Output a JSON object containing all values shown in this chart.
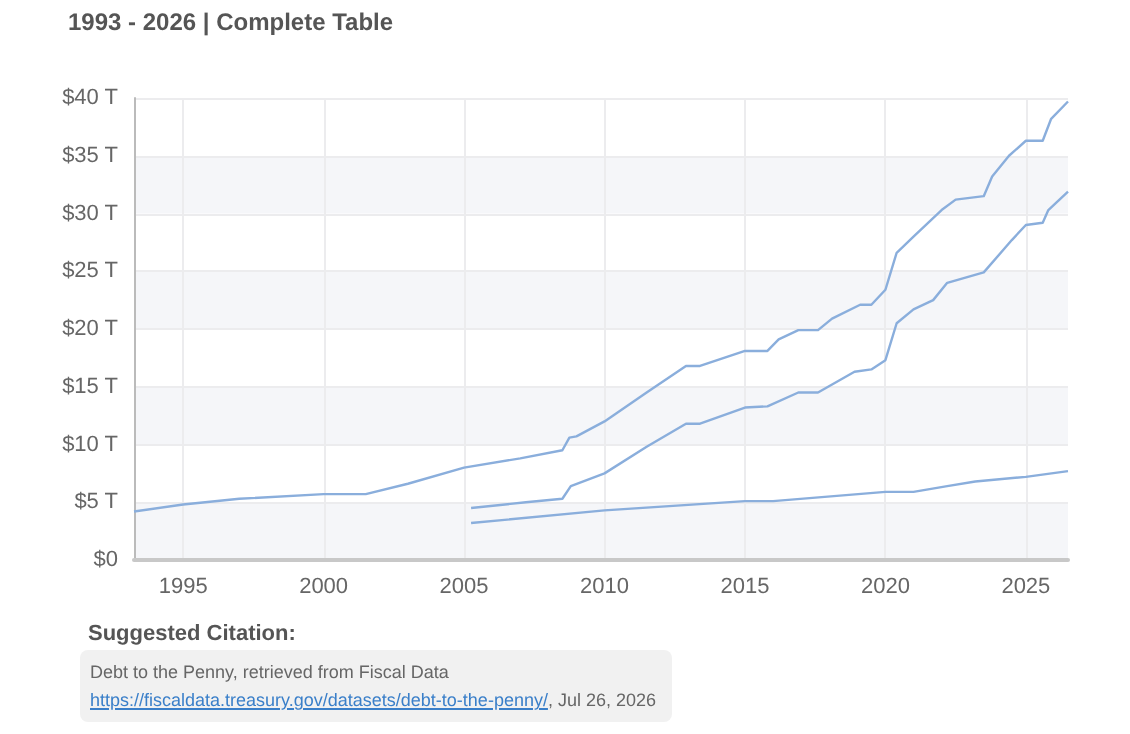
{
  "chart_data": {
    "type": "line",
    "title": "1993 - 2026 | Complete Table",
    "annotations": [
      "Suggested Citation:",
      "Debt to the Penny, retrieved from Fiscal Data",
      "https://fiscaldata.treasury.gov/datasets/debt-to-the-penny/",
      ", Jul 26, 2026"
    ],
    "xlim": [
      1993.25,
      2026.5
    ],
    "xticks": [
      1995,
      2000,
      2005,
      2010,
      2015,
      2020,
      2025
    ],
    "ylim": [
      0,
      40
    ],
    "yticks": [
      {
        "value": 0,
        "label": "$0"
      },
      {
        "value": 5,
        "label": "$5 T"
      },
      {
        "value": 10,
        "label": "$10 T"
      },
      {
        "value": 15,
        "label": "$15 T"
      },
      {
        "value": 20,
        "label": "$20 T"
      },
      {
        "value": 25,
        "label": "$25 T"
      },
      {
        "value": 30,
        "label": "$30 T"
      },
      {
        "value": 35,
        "label": "$35 T"
      },
      {
        "value": 40,
        "label": "$40 T"
      }
    ],
    "grid": true,
    "marker": "none",
    "line_style": "solid",
    "series": [
      {
        "color": "#8aaedc",
        "x": [
          1993.25,
          1995,
          1997,
          2000,
          2001.5,
          2003,
          2005,
          2007,
          2008.5,
          2008.75,
          2009,
          2010,
          2011.5,
          2012.9,
          2013.4,
          2015,
          2015.8,
          2016.2,
          2016.9,
          2017.6,
          2018.1,
          2019.1,
          2019.5,
          2020,
          2020.4,
          2021,
          2022,
          2022.5,
          2023.5,
          2023.8,
          2024.4,
          2025,
          2025.6,
          2025.9,
          2026.5
        ],
        "values": [
          4.2,
          4.8,
          5.3,
          5.7,
          5.7,
          6.6,
          8.0,
          8.8,
          9.5,
          10.6,
          10.7,
          12.0,
          14.5,
          16.8,
          16.8,
          18.1,
          18.1,
          19.1,
          19.9,
          19.9,
          20.9,
          22.1,
          22.1,
          23.4,
          26.6,
          28.0,
          30.3,
          31.2,
          31.5,
          33.2,
          35.0,
          36.3,
          36.3,
          38.2,
          39.7
        ]
      },
      {
        "color": "#8aaedc",
        "x": [
          2005.25,
          2007.2,
          2008.5,
          2008.8,
          2010,
          2011.5,
          2012.9,
          2013.4,
          2015,
          2015.8,
          2016.9,
          2017.6,
          2018.9,
          2019.5,
          2020,
          2020.4,
          2021,
          2021.7,
          2022.2,
          2023.5,
          2024.5,
          2025,
          2025.6,
          2025.8,
          2026.5
        ],
        "values": [
          4.5,
          5.0,
          5.3,
          6.4,
          7.5,
          9.8,
          11.8,
          11.8,
          13.2,
          13.3,
          14.5,
          14.5,
          16.3,
          16.5,
          17.3,
          20.5,
          21.7,
          22.5,
          24.0,
          24.9,
          27.7,
          29.0,
          29.2,
          30.3,
          31.9
        ]
      },
      {
        "color": "#8aaedc",
        "x": [
          2005.25,
          2010,
          2015,
          2016,
          2020,
          2021,
          2022.2,
          2023.2,
          2025,
          2026.5
        ],
        "values": [
          3.2,
          4.3,
          5.1,
          5.1,
          5.9,
          5.9,
          6.4,
          6.8,
          7.2,
          7.7
        ]
      }
    ]
  }
}
